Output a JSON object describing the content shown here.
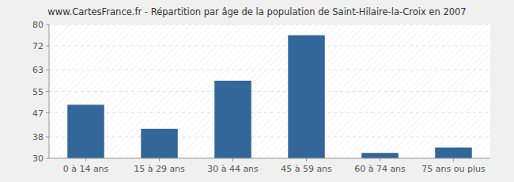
{
  "chart_data": {
    "type": "bar",
    "title": "www.CartesFrance.fr - Répartition par âge de la population de Saint-Hilaire-la-Croix en 2007",
    "categories": [
      "0 à 14 ans",
      "15 à 29 ans",
      "30 à 44 ans",
      "45 à 59 ans",
      "60 à 74 ans",
      "75 ans ou plus"
    ],
    "values": [
      50,
      41,
      59,
      76,
      32,
      34
    ],
    "color": "#336699",
    "ylim": [
      30,
      80
    ],
    "yticks": [
      30,
      38,
      47,
      55,
      63,
      72,
      80
    ],
    "grid": true
  }
}
